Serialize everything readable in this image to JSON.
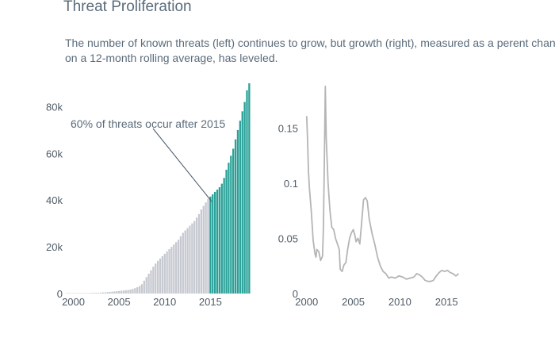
{
  "title": "Threat Proliferation",
  "subtitle_line1": "The number of known threats (left) continues to grow, but growth (right), measured as a perent change",
  "subtitle_line2": "on a 12-month rolling average, has leveled.",
  "colors": {
    "text": "#5a6b7a",
    "axis_text": "#4f5b66",
    "bar_before": "#c7c9d1",
    "bar_after": "#2aa198",
    "line": "#b5b5b5",
    "annotation_line": "#4a5868"
  },
  "chart_data": [
    {
      "type": "bar",
      "side": "left",
      "annotation": "60% of threats occur after 2015",
      "xlim": [
        1999,
        2020
      ],
      "ylim": [
        0,
        90000
      ],
      "x_ticks": [
        2000,
        2005,
        2010,
        2015
      ],
      "x_tick_labels": [
        "2000",
        "2005",
        "2010",
        "2015"
      ],
      "y_ticks": [
        0,
        20000,
        40000,
        60000,
        80000
      ],
      "y_tick_labels": [
        "0",
        "20k",
        "40k",
        "60k",
        "80k"
      ],
      "grid": false,
      "highlight_from_year": 2015,
      "points": [
        [
          1999.25,
          0
        ],
        [
          1999.5,
          0
        ],
        [
          1999.75,
          0
        ],
        [
          2000.0,
          0
        ],
        [
          2000.25,
          50
        ],
        [
          2000.5,
          80
        ],
        [
          2000.75,
          100
        ],
        [
          2001.0,
          120
        ],
        [
          2001.25,
          150
        ],
        [
          2001.5,
          180
        ],
        [
          2001.75,
          200
        ],
        [
          2002.0,
          250
        ],
        [
          2002.25,
          280
        ],
        [
          2002.5,
          300
        ],
        [
          2002.75,
          350
        ],
        [
          2003.0,
          400
        ],
        [
          2003.25,
          450
        ],
        [
          2003.5,
          500
        ],
        [
          2003.75,
          600
        ],
        [
          2004.0,
          700
        ],
        [
          2004.25,
          800
        ],
        [
          2004.5,
          900
        ],
        [
          2004.75,
          1000
        ],
        [
          2005.0,
          1100
        ],
        [
          2005.25,
          1200
        ],
        [
          2005.5,
          1300
        ],
        [
          2005.75,
          1400
        ],
        [
          2006.0,
          1500
        ],
        [
          2006.25,
          1700
        ],
        [
          2006.5,
          2000
        ],
        [
          2006.75,
          2300
        ],
        [
          2007.0,
          2700
        ],
        [
          2007.25,
          3200
        ],
        [
          2007.5,
          4000
        ],
        [
          2007.75,
          5500
        ],
        [
          2008.0,
          7000
        ],
        [
          2008.25,
          8500
        ],
        [
          2008.5,
          10000
        ],
        [
          2008.75,
          11500
        ],
        [
          2009.0,
          12800
        ],
        [
          2009.25,
          14000
        ],
        [
          2009.5,
          15000
        ],
        [
          2009.75,
          16000
        ],
        [
          2010.0,
          17000
        ],
        [
          2010.25,
          18000
        ],
        [
          2010.5,
          19000
        ],
        [
          2010.75,
          20000
        ],
        [
          2011.0,
          21000
        ],
        [
          2011.25,
          22000
        ],
        [
          2011.5,
          23000
        ],
        [
          2011.75,
          24500
        ],
        [
          2012.0,
          26000
        ],
        [
          2012.25,
          27000
        ],
        [
          2012.5,
          28000
        ],
        [
          2012.75,
          29000
        ],
        [
          2013.0,
          30000
        ],
        [
          2013.25,
          31000
        ],
        [
          2013.5,
          32500
        ],
        [
          2013.75,
          34000
        ],
        [
          2014.0,
          36000
        ],
        [
          2014.25,
          37500
        ],
        [
          2014.5,
          39000
        ],
        [
          2014.75,
          40500
        ],
        [
          2015.0,
          41500
        ],
        [
          2015.25,
          42500
        ],
        [
          2015.5,
          43500
        ],
        [
          2015.75,
          44500
        ],
        [
          2016.0,
          45500
        ],
        [
          2016.25,
          47000
        ],
        [
          2016.5,
          49500
        ],
        [
          2016.75,
          53000
        ],
        [
          2017.0,
          56000
        ],
        [
          2017.25,
          59000
        ],
        [
          2017.5,
          62000
        ],
        [
          2017.75,
          66000
        ],
        [
          2018.0,
          70000
        ],
        [
          2018.25,
          74000
        ],
        [
          2018.5,
          78000
        ],
        [
          2018.75,
          82000
        ],
        [
          2019.0,
          87000
        ],
        [
          2019.25,
          90000
        ]
      ]
    },
    {
      "type": "line",
      "side": "right",
      "xlim": [
        1999,
        2020
      ],
      "ylim": [
        0,
        0.19
      ],
      "x_ticks": [
        2000,
        2005,
        2010,
        2015
      ],
      "x_tick_labels": [
        "2000",
        "2005",
        "2010",
        "2015"
      ],
      "y_ticks": [
        0,
        0.05,
        0.1,
        0.15
      ],
      "y_tick_labels": [
        "0",
        "0.05",
        "0.1",
        "0.15"
      ],
      "grid": false,
      "points": [
        [
          2000.0,
          0.161
        ],
        [
          2000.1,
          0.14
        ],
        [
          2000.2,
          0.11
        ],
        [
          2000.3,
          0.095
        ],
        [
          2000.5,
          0.075
        ],
        [
          2000.7,
          0.048
        ],
        [
          2000.9,
          0.036
        ],
        [
          2001.0,
          0.033
        ],
        [
          2001.1,
          0.04
        ],
        [
          2001.3,
          0.038
        ],
        [
          2001.5,
          0.03
        ],
        [
          2001.7,
          0.034
        ],
        [
          2001.8,
          0.06
        ],
        [
          2001.9,
          0.12
        ],
        [
          2002.0,
          0.188
        ],
        [
          2002.1,
          0.14
        ],
        [
          2002.3,
          0.1
        ],
        [
          2002.5,
          0.075
        ],
        [
          2002.7,
          0.06
        ],
        [
          2002.9,
          0.058
        ],
        [
          2003.1,
          0.05
        ],
        [
          2003.3,
          0.045
        ],
        [
          2003.5,
          0.04
        ],
        [
          2003.6,
          0.022
        ],
        [
          2003.8,
          0.02
        ],
        [
          2004.0,
          0.026
        ],
        [
          2004.2,
          0.028
        ],
        [
          2004.4,
          0.04
        ],
        [
          2004.6,
          0.05
        ],
        [
          2004.8,
          0.055
        ],
        [
          2005.0,
          0.058
        ],
        [
          2005.2,
          0.052
        ],
        [
          2005.3,
          0.047
        ],
        [
          2005.5,
          0.05
        ],
        [
          2005.7,
          0.045
        ],
        [
          2005.9,
          0.065
        ],
        [
          2006.1,
          0.085
        ],
        [
          2006.3,
          0.087
        ],
        [
          2006.5,
          0.084
        ],
        [
          2006.7,
          0.068
        ],
        [
          2007.0,
          0.055
        ],
        [
          2007.3,
          0.045
        ],
        [
          2007.6,
          0.033
        ],
        [
          2007.9,
          0.025
        ],
        [
          2008.2,
          0.02
        ],
        [
          2008.5,
          0.018
        ],
        [
          2008.8,
          0.014
        ],
        [
          2009.1,
          0.015
        ],
        [
          2009.5,
          0.014
        ],
        [
          2009.9,
          0.016
        ],
        [
          2010.3,
          0.015
        ],
        [
          2010.7,
          0.013
        ],
        [
          2011.1,
          0.014
        ],
        [
          2011.5,
          0.015
        ],
        [
          2011.8,
          0.018
        ],
        [
          2012.1,
          0.017
        ],
        [
          2012.4,
          0.015
        ],
        [
          2012.7,
          0.012
        ],
        [
          2013.0,
          0.011
        ],
        [
          2013.3,
          0.011
        ],
        [
          2013.6,
          0.012
        ],
        [
          2013.9,
          0.016
        ],
        [
          2014.2,
          0.019
        ],
        [
          2014.5,
          0.021
        ],
        [
          2014.8,
          0.02
        ],
        [
          2015.1,
          0.021
        ],
        [
          2015.4,
          0.019
        ],
        [
          2015.7,
          0.018
        ],
        [
          2016.0,
          0.016
        ],
        [
          2016.3,
          0.018
        ]
      ]
    }
  ]
}
